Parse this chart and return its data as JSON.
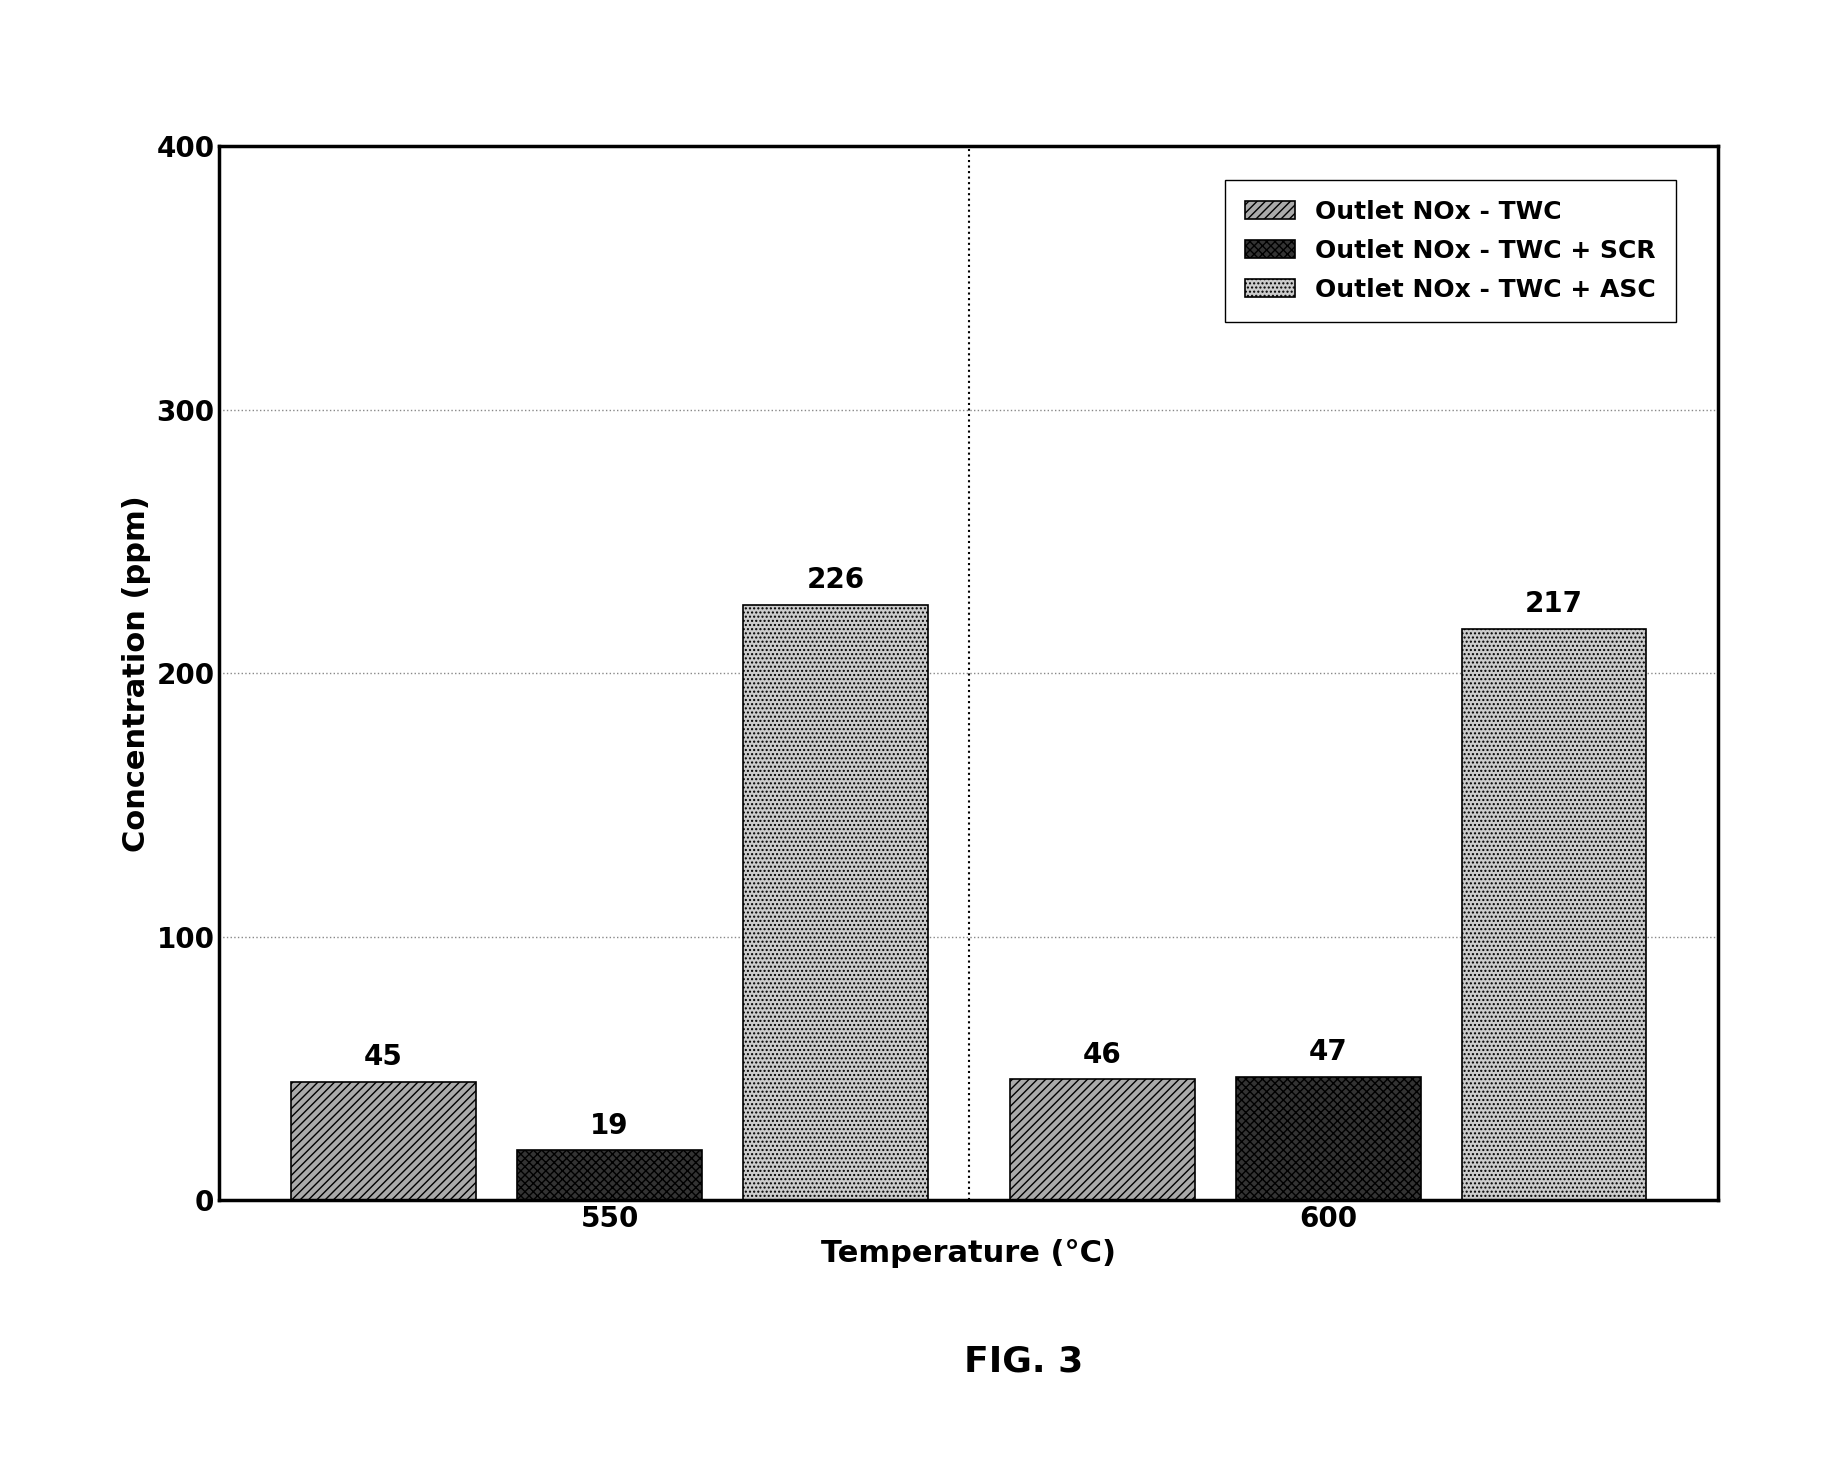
{
  "categories": [
    "550",
    "600"
  ],
  "series": [
    {
      "label": "Outlet NOx - TWC",
      "values": [
        45,
        46
      ],
      "color": "#aaaaaa",
      "hatch": "////",
      "edgecolor": "#000000"
    },
    {
      "label": "Outlet NOx - TWC + SCR",
      "values": [
        19,
        47
      ],
      "color": "#333333",
      "hatch": "xxxx",
      "edgecolor": "#000000"
    },
    {
      "label": "Outlet NOx - TWC + ASC",
      "values": [
        226,
        217
      ],
      "color": "#cccccc",
      "hatch": "....",
      "edgecolor": "#000000"
    }
  ],
  "ylabel": "Concentration (ppm)",
  "xlabel": "Temperature (°C)",
  "ylim": [
    0,
    400
  ],
  "yticks": [
    0,
    100,
    200,
    300,
    400
  ],
  "fig_label": "FIG. 3",
  "bar_width": 0.18,
  "group_positions": [
    0.3,
    1.0
  ],
  "annotation_fontsize": 20,
  "axis_label_fontsize": 22,
  "tick_fontsize": 20,
  "legend_fontsize": 18,
  "fig_label_fontsize": 26,
  "background_color": "#ffffff"
}
